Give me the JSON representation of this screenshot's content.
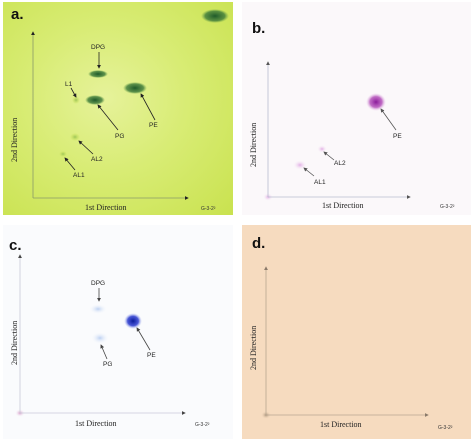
{
  "panels": [
    {
      "letter": "a.",
      "x_axis": "1st Direction",
      "y_axis": "2nd Direction",
      "code": "G-3-2²",
      "labels": {
        "dpg": "DPG",
        "l1": "L1",
        "pg": "PG",
        "pe": "PE",
        "al2": "AL2",
        "al1": "AL1"
      }
    },
    {
      "letter": "b.",
      "x_axis": "1st Direction",
      "y_axis": "2nd Direction",
      "code": "G-3-2²",
      "labels": {
        "pe": "PE",
        "al2": "AL2",
        "al1": "AL1"
      }
    },
    {
      "letter": "c.",
      "x_axis": "1st Direction",
      "y_axis": "2nd Direction",
      "code": "G-3-2²",
      "labels": {
        "dpg": "DPG",
        "pg": "PG",
        "pe": "PE"
      }
    },
    {
      "letter": "d.",
      "x_axis": "1st Direction",
      "y_axis": "2nd Direction",
      "code": "G-3-2²",
      "labels": {}
    }
  ]
}
